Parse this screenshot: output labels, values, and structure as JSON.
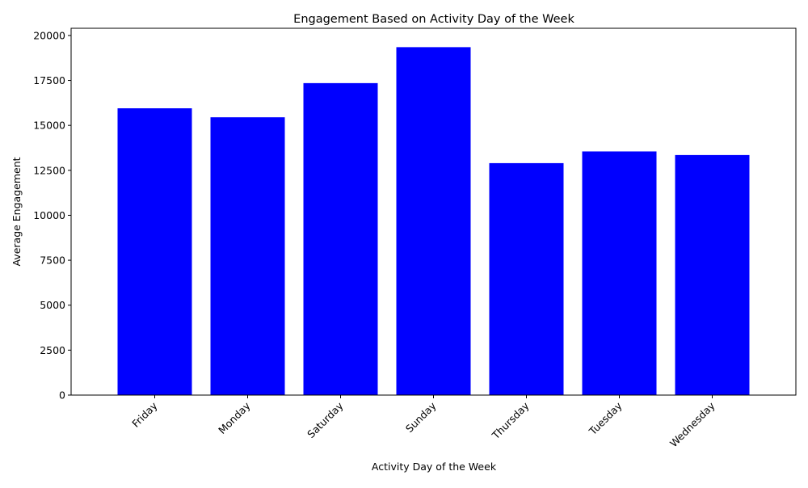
{
  "chart_data": {
    "type": "bar",
    "title": "Engagement Based on Activity Day of the Week",
    "xlabel": "Activity Day of the Week",
    "ylabel": "Average Engagement",
    "categories": [
      "Friday",
      "Monday",
      "Saturday",
      "Sunday",
      "Thursday",
      "Tuesday",
      "Wednesday"
    ],
    "values": [
      15950,
      15450,
      17350,
      19350,
      12900,
      13550,
      13350
    ],
    "ylim": [
      0,
      20400
    ],
    "yticks": [
      0,
      2500,
      5000,
      7500,
      10000,
      12500,
      15000,
      17500,
      20000
    ],
    "bar_color": "#0000ff",
    "grid": false,
    "legend": "none"
  }
}
